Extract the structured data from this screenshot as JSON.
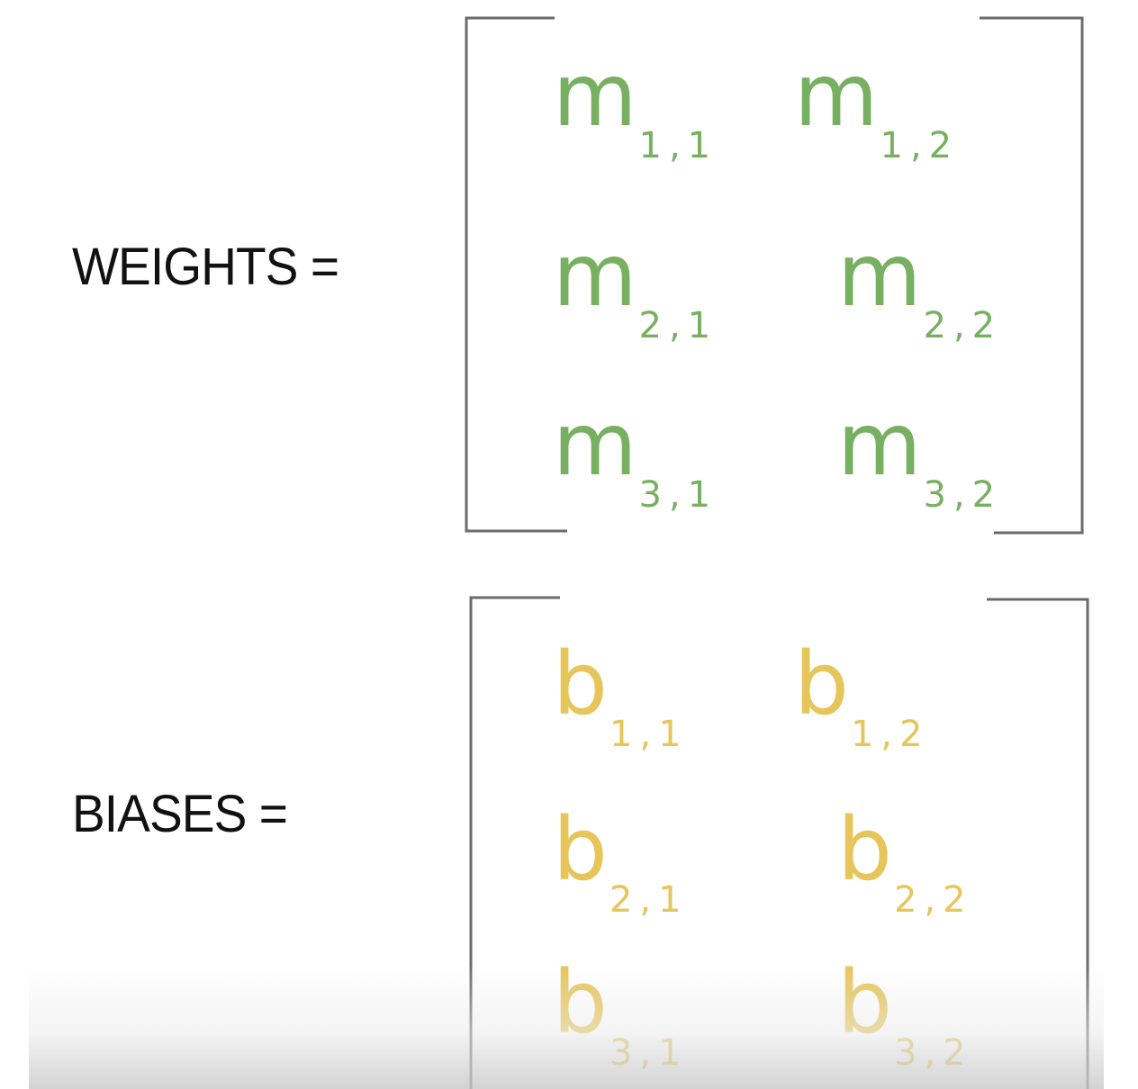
{
  "weights": {
    "label": "WEIGHTS =",
    "symbol": "m",
    "color": "#78b061",
    "entries": [
      {
        "sym": "m",
        "sub": "1,1"
      },
      {
        "sym": "m",
        "sub": "1,2"
      },
      {
        "sym": "m",
        "sub": "2,1"
      },
      {
        "sym": "m",
        "sub": "2,2"
      },
      {
        "sym": "m",
        "sub": "3,1"
      },
      {
        "sym": "m",
        "sub": "3,2"
      }
    ]
  },
  "biases": {
    "label": "BIASES =",
    "symbol": "b",
    "color": "#e6c55a",
    "entries": [
      {
        "sym": "b",
        "sub": "1,1"
      },
      {
        "sym": "b",
        "sub": "1,2"
      },
      {
        "sym": "b",
        "sub": "2,1"
      },
      {
        "sym": "b",
        "sub": "2,2"
      },
      {
        "sym": "b",
        "sub": "3,1"
      },
      {
        "sym": "b",
        "sub": "3,2"
      }
    ]
  },
  "bracket_color": "#6b6b6b",
  "label_color": "#111111"
}
